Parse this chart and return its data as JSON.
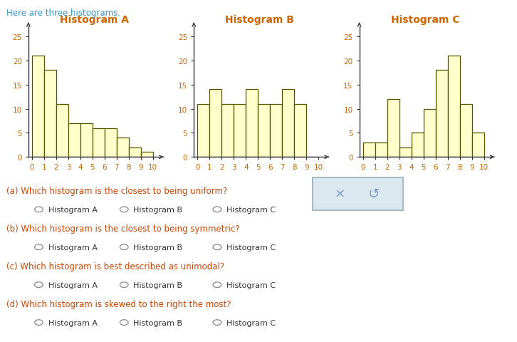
{
  "title_text": "Here are three histograms.",
  "title_color": "#3399cc",
  "hist_titles": [
    "Histogram A",
    "Histogram B",
    "Histogram C"
  ],
  "hist_A_values": [
    21,
    18,
    11,
    7,
    7,
    6,
    6,
    4,
    2,
    1
  ],
  "hist_B_values": [
    11,
    14,
    11,
    11,
    14,
    11,
    11,
    14,
    11,
    0
  ],
  "hist_C_values": [
    3,
    3,
    12,
    2,
    5,
    10,
    18,
    21,
    11,
    5
  ],
  "bar_facecolor": "#ffffcc",
  "bar_edgecolor": "#555500",
  "axis_spine_color": "#333333",
  "tick_label_color": "#cc6600",
  "hist_title_color": "#cc6600",
  "hist_title_fontsize": 10,
  "ylim": [
    0,
    27
  ],
  "yticks": [
    0,
    5,
    10,
    15,
    20,
    25
  ],
  "xticks": [
    0,
    1,
    2,
    3,
    4,
    5,
    6,
    7,
    8,
    9,
    10
  ],
  "tick_fontsize": 7.5,
  "questions": [
    "(a) Which histogram is the closest to being uniform?",
    "(b) Which histogram is the closest to being symmetric?",
    "(c) Which histogram is best described as unimodal?",
    "(d) Which histogram is skewed to the right the most?"
  ],
  "question_color": "#cc4400",
  "option_labels": [
    "Histogram A",
    "Histogram B",
    "Histogram C"
  ],
  "option_color": "#333333",
  "option_fontsize": 8,
  "question_fontsize": 8.5,
  "bg_color": "#ffffff",
  "button_bg": "#dce8f0",
  "button_border": "#aabbc8",
  "button_text_color": "#7799bb"
}
